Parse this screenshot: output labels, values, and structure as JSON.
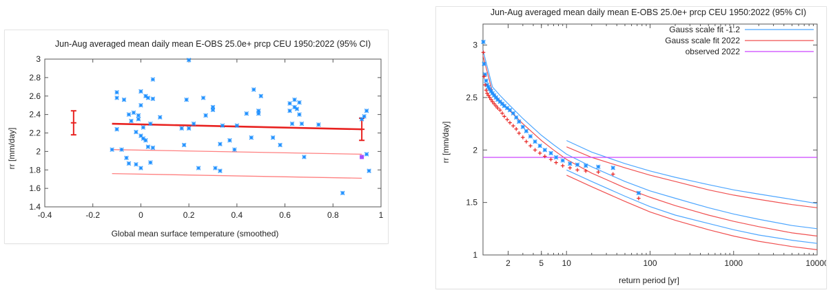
{
  "chart_data": [
    {
      "type": "scatter",
      "title": "Jun-Aug averaged mean daily mean E-OBS 25.0e+ prcp CEU 1950:2022 (95% CI)",
      "xlabel": "Global mean surface temperature (smoothed)",
      "ylabel": "rr [mm/day]",
      "xlim": [
        -0.4,
        1.0
      ],
      "ylim": [
        1.4,
        3.0
      ],
      "xticks": [
        -0.4,
        -0.2,
        0,
        0.2,
        0.4,
        0.6,
        0.8,
        1.0
      ],
      "xtick_labels": [
        "-0.4",
        "-0.2",
        "0",
        "0.2",
        "0.4",
        "0.6",
        "0.8",
        "1"
      ],
      "yticks": [
        1.4,
        1.6,
        1.8,
        2.0,
        2.2,
        2.4,
        2.6,
        2.8,
        3.0
      ],
      "ytick_labels": [
        "1.4",
        "1.6",
        "1.8",
        "2",
        "2.2",
        "2.4",
        "2.6",
        "2.8",
        "3"
      ],
      "grid": false,
      "colors": {
        "points": "#1e90ff",
        "fit": "#e8211f",
        "bands": "#ff7f7f",
        "highlight": "#a64dff"
      },
      "points": [
        {
          "x": -0.12,
          "y": 2.02
        },
        {
          "x": -0.1,
          "y": 2.64
        },
        {
          "x": -0.1,
          "y": 2.58
        },
        {
          "x": -0.1,
          "y": 2.24
        },
        {
          "x": -0.08,
          "y": 2.02
        },
        {
          "x": -0.07,
          "y": 2.56
        },
        {
          "x": -0.06,
          "y": 1.93
        },
        {
          "x": -0.05,
          "y": 2.4
        },
        {
          "x": -0.05,
          "y": 1.87
        },
        {
          "x": -0.04,
          "y": 2.33
        },
        {
          "x": -0.03,
          "y": 2.42
        },
        {
          "x": -0.02,
          "y": 2.21
        },
        {
          "x": -0.02,
          "y": 1.86
        },
        {
          "x": -0.01,
          "y": 2.39
        },
        {
          "x": -0.01,
          "y": 2.35
        },
        {
          "x": 0.0,
          "y": 2.65
        },
        {
          "x": 0.0,
          "y": 2.17
        },
        {
          "x": 0.0,
          "y": 2.5
        },
        {
          "x": 0.0,
          "y": 1.82
        },
        {
          "x": 0.01,
          "y": 2.26
        },
        {
          "x": 0.01,
          "y": 2.14
        },
        {
          "x": 0.02,
          "y": 2.6
        },
        {
          "x": 0.02,
          "y": 2.12
        },
        {
          "x": 0.03,
          "y": 2.58
        },
        {
          "x": 0.03,
          "y": 2.05
        },
        {
          "x": 0.04,
          "y": 2.3
        },
        {
          "x": 0.04,
          "y": 1.88
        },
        {
          "x": 0.05,
          "y": 2.78
        },
        {
          "x": 0.05,
          "y": 2.57
        },
        {
          "x": 0.05,
          "y": 2.04
        },
        {
          "x": 0.08,
          "y": 2.37
        },
        {
          "x": 0.17,
          "y": 2.25
        },
        {
          "x": 0.18,
          "y": 2.07
        },
        {
          "x": 0.19,
          "y": 2.56
        },
        {
          "x": 0.2,
          "y": 2.25
        },
        {
          "x": 0.2,
          "y": 2.99
        },
        {
          "x": 0.22,
          "y": 2.3
        },
        {
          "x": 0.24,
          "y": 1.82
        },
        {
          "x": 0.26,
          "y": 2.58
        },
        {
          "x": 0.27,
          "y": 2.39
        },
        {
          "x": 0.3,
          "y": 2.48
        },
        {
          "x": 0.3,
          "y": 2.45
        },
        {
          "x": 0.31,
          "y": 1.82
        },
        {
          "x": 0.33,
          "y": 2.08
        },
        {
          "x": 0.33,
          "y": 1.79
        },
        {
          "x": 0.34,
          "y": 2.28
        },
        {
          "x": 0.37,
          "y": 2.12
        },
        {
          "x": 0.39,
          "y": 2.02
        },
        {
          "x": 0.4,
          "y": 2.28
        },
        {
          "x": 0.44,
          "y": 2.41
        },
        {
          "x": 0.46,
          "y": 2.15
        },
        {
          "x": 0.47,
          "y": 2.67
        },
        {
          "x": 0.49,
          "y": 2.44
        },
        {
          "x": 0.49,
          "y": 2.41
        },
        {
          "x": 0.5,
          "y": 2.6
        },
        {
          "x": 0.55,
          "y": 2.15
        },
        {
          "x": 0.58,
          "y": 2.07
        },
        {
          "x": 0.62,
          "y": 2.52
        },
        {
          "x": 0.62,
          "y": 2.44
        },
        {
          "x": 0.63,
          "y": 2.3
        },
        {
          "x": 0.64,
          "y": 2.56
        },
        {
          "x": 0.64,
          "y": 2.48
        },
        {
          "x": 0.65,
          "y": 2.46
        },
        {
          "x": 0.66,
          "y": 2.53
        },
        {
          "x": 0.66,
          "y": 2.4
        },
        {
          "x": 0.67,
          "y": 2.3
        },
        {
          "x": 0.68,
          "y": 1.94
        },
        {
          "x": 0.74,
          "y": 2.29
        },
        {
          "x": 0.84,
          "y": 1.55
        },
        {
          "x": 0.92,
          "y": 2.35
        },
        {
          "x": 0.93,
          "y": 2.38
        },
        {
          "x": 0.94,
          "y": 2.44
        },
        {
          "x": 0.94,
          "y": 1.97
        },
        {
          "x": 0.95,
          "y": 1.79
        }
      ],
      "highlight_point": {
        "x": 0.92,
        "y": 1.94
      },
      "fit_line": {
        "x": [
          -0.12,
          0.92
        ],
        "y": [
          2.3,
          2.24
        ]
      },
      "band_lines": [
        {
          "x": [
            -0.12,
            0.92
          ],
          "y": [
            2.02,
            1.97
          ]
        },
        {
          "x": [
            -0.12,
            0.92
          ],
          "y": [
            1.76,
            1.71
          ]
        }
      ],
      "errorbars": [
        {
          "x": -0.28,
          "y": 2.31,
          "low": 2.18,
          "high": 2.44
        },
        {
          "x": 0.92,
          "y": 2.24,
          "low": 2.12,
          "high": 2.36
        }
      ]
    },
    {
      "type": "scatter",
      "title": "Jun-Aug averaged mean daily mean E-OBS 25.0e+ prcp CEU 1950:2022 (95% CI)",
      "xlabel": "return period [yr]",
      "ylabel": "rr [mm/day]",
      "xscale": "log",
      "xlim": [
        1,
        10000
      ],
      "ylim": [
        1.0,
        3.2
      ],
      "xticks": [
        2,
        5,
        10,
        100,
        1000,
        10000
      ],
      "xtick_labels": [
        "2",
        "5",
        "10",
        "100",
        "1000",
        "10000"
      ],
      "yticks": [
        1.0,
        1.5,
        2.0,
        2.5,
        3.0
      ],
      "ytick_labels": [
        "1",
        "1.5",
        "2",
        "2.5",
        "3"
      ],
      "grid": false,
      "legend_position": "top-right",
      "legend": [
        "Gauss scale fit -1.2",
        "Gauss scale fit 2022",
        "observed 2022"
      ],
      "colors": {
        "fit_past": "#4da6ff",
        "fit_2022": "#f05050",
        "observed": "#cc44ff",
        "obs_past": "#1e90ff",
        "obs_2022": "#e8211f"
      },
      "observed_2022": 1.93,
      "series": [
        {
          "name": "Gauss scale fit -1.2",
          "curves": [
            {
              "x": [
                10,
                20,
                50,
                100,
                200,
                500,
                1000,
                2000,
                5000,
                10000
              ],
              "y": [
                2.09,
                1.98,
                1.87,
                1.8,
                1.74,
                1.67,
                1.62,
                1.58,
                1.53,
                1.49
              ]
            },
            {
              "x": [
                1,
                1.3,
                1.6,
                2,
                3,
                5,
                7,
                10,
                20,
                50,
                100,
                200,
                500,
                1000,
                2000,
                5000,
                10000
              ],
              "y": [
                2.95,
                2.6,
                2.52,
                2.44,
                2.3,
                2.14,
                2.05,
                1.96,
                1.84,
                1.7,
                1.61,
                1.54,
                1.45,
                1.39,
                1.34,
                1.28,
                1.25
              ]
            },
            {
              "x": [
                10,
                20,
                50,
                100,
                200,
                500,
                1000,
                2000,
                5000,
                10000
              ],
              "y": [
                1.81,
                1.7,
                1.56,
                1.46,
                1.38,
                1.3,
                1.24,
                1.19,
                1.14,
                1.11
              ]
            }
          ]
        },
        {
          "name": "Gauss scale fit 2022",
          "curves": [
            {
              "x": [
                10,
                20,
                50,
                100,
                200,
                500,
                1000,
                2000,
                5000,
                10000
              ],
              "y": [
                2.03,
                1.93,
                1.83,
                1.76,
                1.7,
                1.62,
                1.57,
                1.53,
                1.48,
                1.45
              ]
            },
            {
              "x": [
                1,
                1.3,
                1.6,
                2,
                3,
                5,
                7,
                10,
                20,
                50,
                100,
                200,
                500,
                1000,
                2000,
                5000,
                10000
              ],
              "y": [
                2.9,
                2.55,
                2.47,
                2.39,
                2.25,
                2.09,
                2.0,
                1.91,
                1.78,
                1.64,
                1.55,
                1.47,
                1.38,
                1.32,
                1.27,
                1.21,
                1.18
              ]
            },
            {
              "x": [
                10,
                20,
                50,
                100,
                200,
                500,
                1000,
                2000,
                5000,
                10000
              ],
              "y": [
                1.76,
                1.65,
                1.51,
                1.41,
                1.33,
                1.24,
                1.18,
                1.13,
                1.08,
                1.05
              ]
            }
          ]
        }
      ],
      "observed_points_past": [
        {
          "x": 1.01,
          "y": 3.03
        },
        {
          "x": 1.03,
          "y": 2.82
        },
        {
          "x": 1.06,
          "y": 2.72
        },
        {
          "x": 1.09,
          "y": 2.66
        },
        {
          "x": 1.12,
          "y": 2.62
        },
        {
          "x": 1.16,
          "y": 2.6
        },
        {
          "x": 1.2,
          "y": 2.58
        },
        {
          "x": 1.25,
          "y": 2.56
        },
        {
          "x": 1.3,
          "y": 2.54
        },
        {
          "x": 1.36,
          "y": 2.52
        },
        {
          "x": 1.43,
          "y": 2.5
        },
        {
          "x": 1.5,
          "y": 2.48
        },
        {
          "x": 1.6,
          "y": 2.46
        },
        {
          "x": 1.7,
          "y": 2.44
        },
        {
          "x": 1.8,
          "y": 2.42
        },
        {
          "x": 1.95,
          "y": 2.4
        },
        {
          "x": 2.1,
          "y": 2.38
        },
        {
          "x": 2.3,
          "y": 2.35
        },
        {
          "x": 2.5,
          "y": 2.31
        },
        {
          "x": 2.7,
          "y": 2.27
        },
        {
          "x": 3.0,
          "y": 2.22
        },
        {
          "x": 3.3,
          "y": 2.18
        },
        {
          "x": 3.7,
          "y": 2.13
        },
        {
          "x": 4.2,
          "y": 2.08
        },
        {
          "x": 4.8,
          "y": 2.04
        },
        {
          "x": 5.5,
          "y": 2.0
        },
        {
          "x": 6.5,
          "y": 1.97
        },
        {
          "x": 7.5,
          "y": 1.93
        },
        {
          "x": 9,
          "y": 1.9
        },
        {
          "x": 11,
          "y": 1.87
        },
        {
          "x": 13.5,
          "y": 1.86
        },
        {
          "x": 17,
          "y": 1.85
        },
        {
          "x": 24,
          "y": 1.84
        },
        {
          "x": 36,
          "y": 1.83
        },
        {
          "x": 73,
          "y": 1.59
        }
      ],
      "observed_points_2022": [
        {
          "x": 1.01,
          "y": 2.93
        },
        {
          "x": 1.03,
          "y": 2.7
        },
        {
          "x": 1.06,
          "y": 2.62
        },
        {
          "x": 1.09,
          "y": 2.57
        },
        {
          "x": 1.12,
          "y": 2.54
        },
        {
          "x": 1.16,
          "y": 2.52
        },
        {
          "x": 1.2,
          "y": 2.5
        },
        {
          "x": 1.25,
          "y": 2.48
        },
        {
          "x": 1.3,
          "y": 2.46
        },
        {
          "x": 1.36,
          "y": 2.44
        },
        {
          "x": 1.43,
          "y": 2.42
        },
        {
          "x": 1.5,
          "y": 2.4
        },
        {
          "x": 1.6,
          "y": 2.38
        },
        {
          "x": 1.7,
          "y": 2.35
        },
        {
          "x": 1.8,
          "y": 2.32
        },
        {
          "x": 1.95,
          "y": 2.29
        },
        {
          "x": 2.1,
          "y": 2.26
        },
        {
          "x": 2.3,
          "y": 2.23
        },
        {
          "x": 2.5,
          "y": 2.2
        },
        {
          "x": 2.7,
          "y": 2.16
        },
        {
          "x": 3.0,
          "y": 2.12
        },
        {
          "x": 3.3,
          "y": 2.08
        },
        {
          "x": 3.7,
          "y": 2.04
        },
        {
          "x": 4.2,
          "y": 2.0
        },
        {
          "x": 4.8,
          "y": 1.97
        },
        {
          "x": 5.5,
          "y": 1.94
        },
        {
          "x": 6.5,
          "y": 1.91
        },
        {
          "x": 7.5,
          "y": 1.88
        },
        {
          "x": 9,
          "y": 1.85
        },
        {
          "x": 11,
          "y": 1.83
        },
        {
          "x": 13.5,
          "y": 1.81
        },
        {
          "x": 17,
          "y": 1.8
        },
        {
          "x": 24,
          "y": 1.79
        },
        {
          "x": 36,
          "y": 1.77
        },
        {
          "x": 73,
          "y": 1.54
        }
      ]
    }
  ]
}
